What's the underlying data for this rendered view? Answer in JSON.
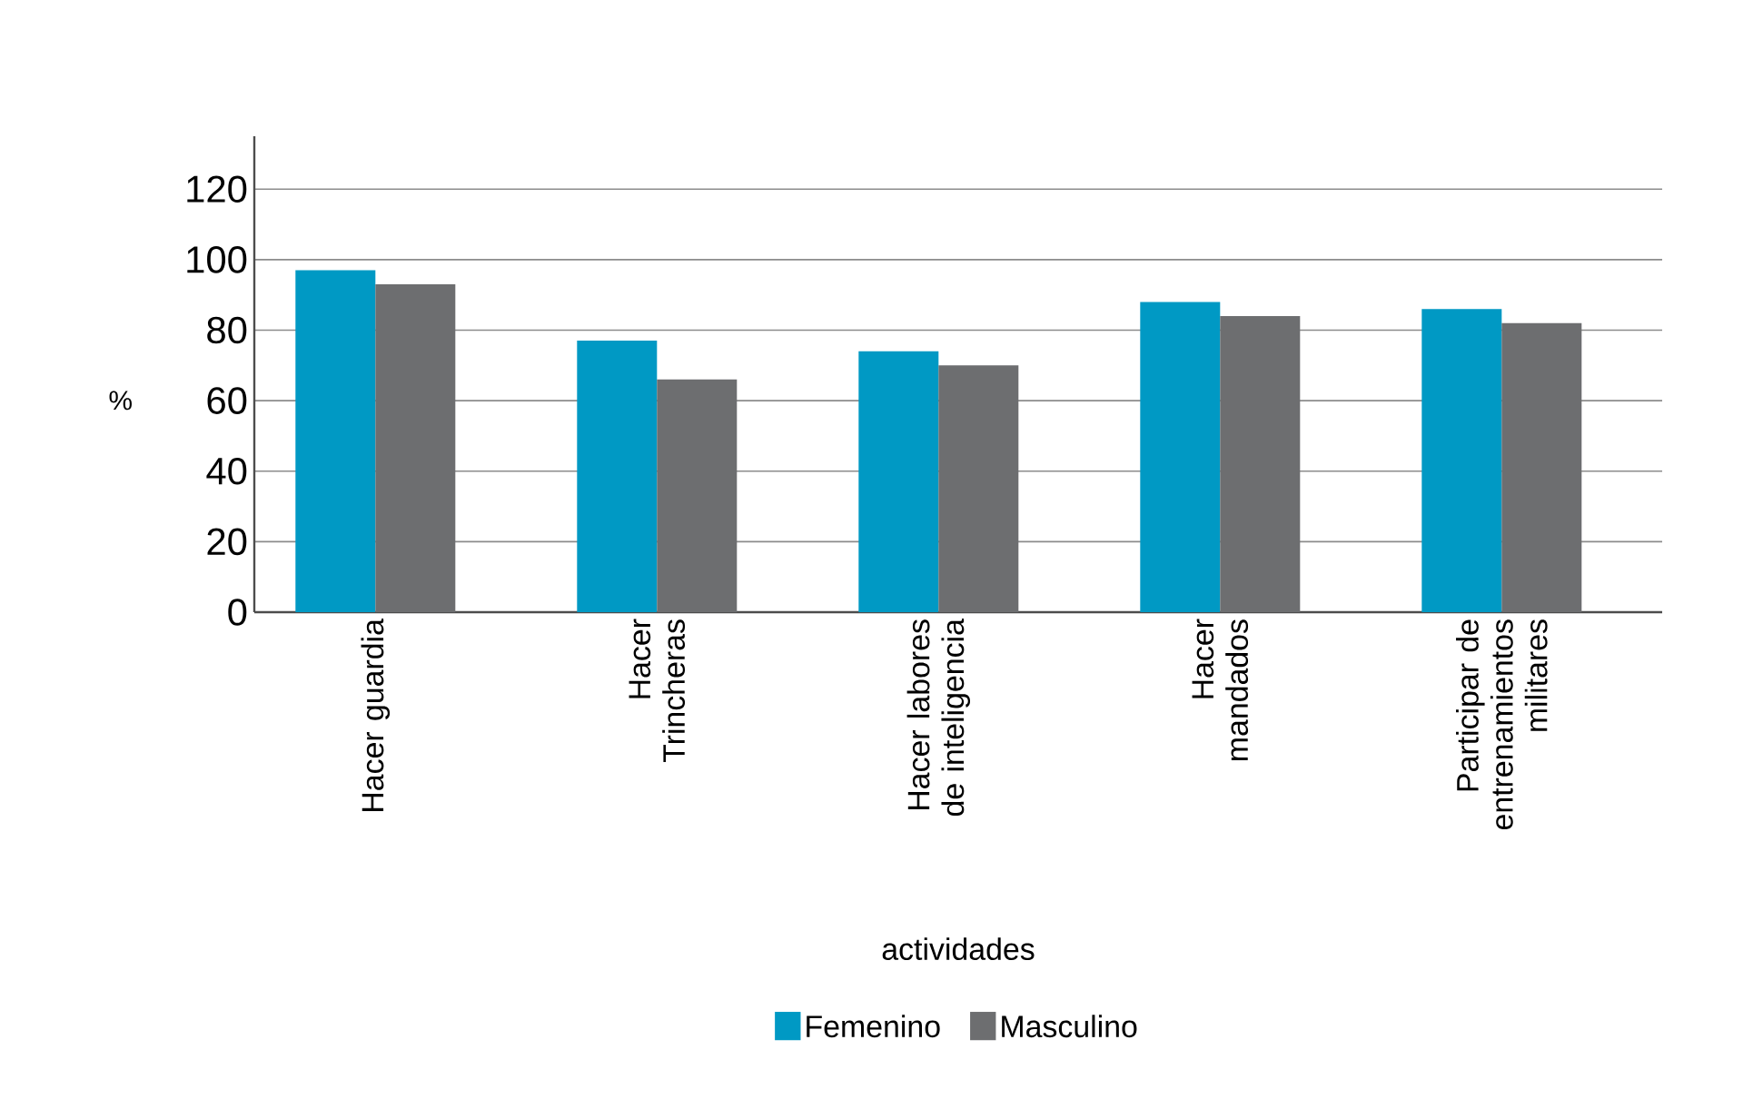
{
  "chart_data": {
    "type": "bar",
    "xlabel": "actividades",
    "ylabel": "%",
    "categories": [
      "Hacer guardia",
      "Hacer Trincheras",
      "Hacer labores de inteligencia",
      "Hacer mandados",
      "Participar de entrenamientos militares"
    ],
    "series": [
      {
        "name": "Femenino",
        "color": "#0099c4",
        "values": [
          97,
          77,
          74,
          88,
          86
        ]
      },
      {
        "name": "Masculino",
        "color": "#6d6e70",
        "values": [
          93,
          66,
          70,
          84,
          82
        ]
      }
    ],
    "ylim": [
      0,
      135
    ],
    "yticks": [
      0,
      20,
      40,
      60,
      80,
      100,
      120
    ],
    "grid": "y",
    "legend": "bottom"
  }
}
